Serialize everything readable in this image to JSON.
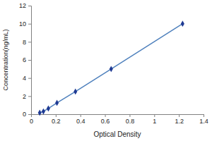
{
  "chart_data": {
    "type": "line",
    "x_label": "Optical Density",
    "y_label": "Concentration(ng/mL)",
    "x": [
      0.07,
      0.1,
      0.14,
      0.21,
      0.36,
      0.65,
      1.23
    ],
    "values": [
      0.16,
      0.31,
      0.625,
      1.25,
      2.5,
      5,
      10
    ],
    "color": "#4f81bd",
    "marker": "diamond",
    "xlim": [
      0,
      1.4
    ],
    "xticks": [
      0,
      0.2,
      0.4,
      0.6,
      0.8,
      1,
      1.2,
      1.4
    ],
    "ylim": [
      0,
      12
    ],
    "yticks": [
      0,
      2,
      4,
      6,
      8,
      10,
      12
    ],
    "grid": false
  }
}
